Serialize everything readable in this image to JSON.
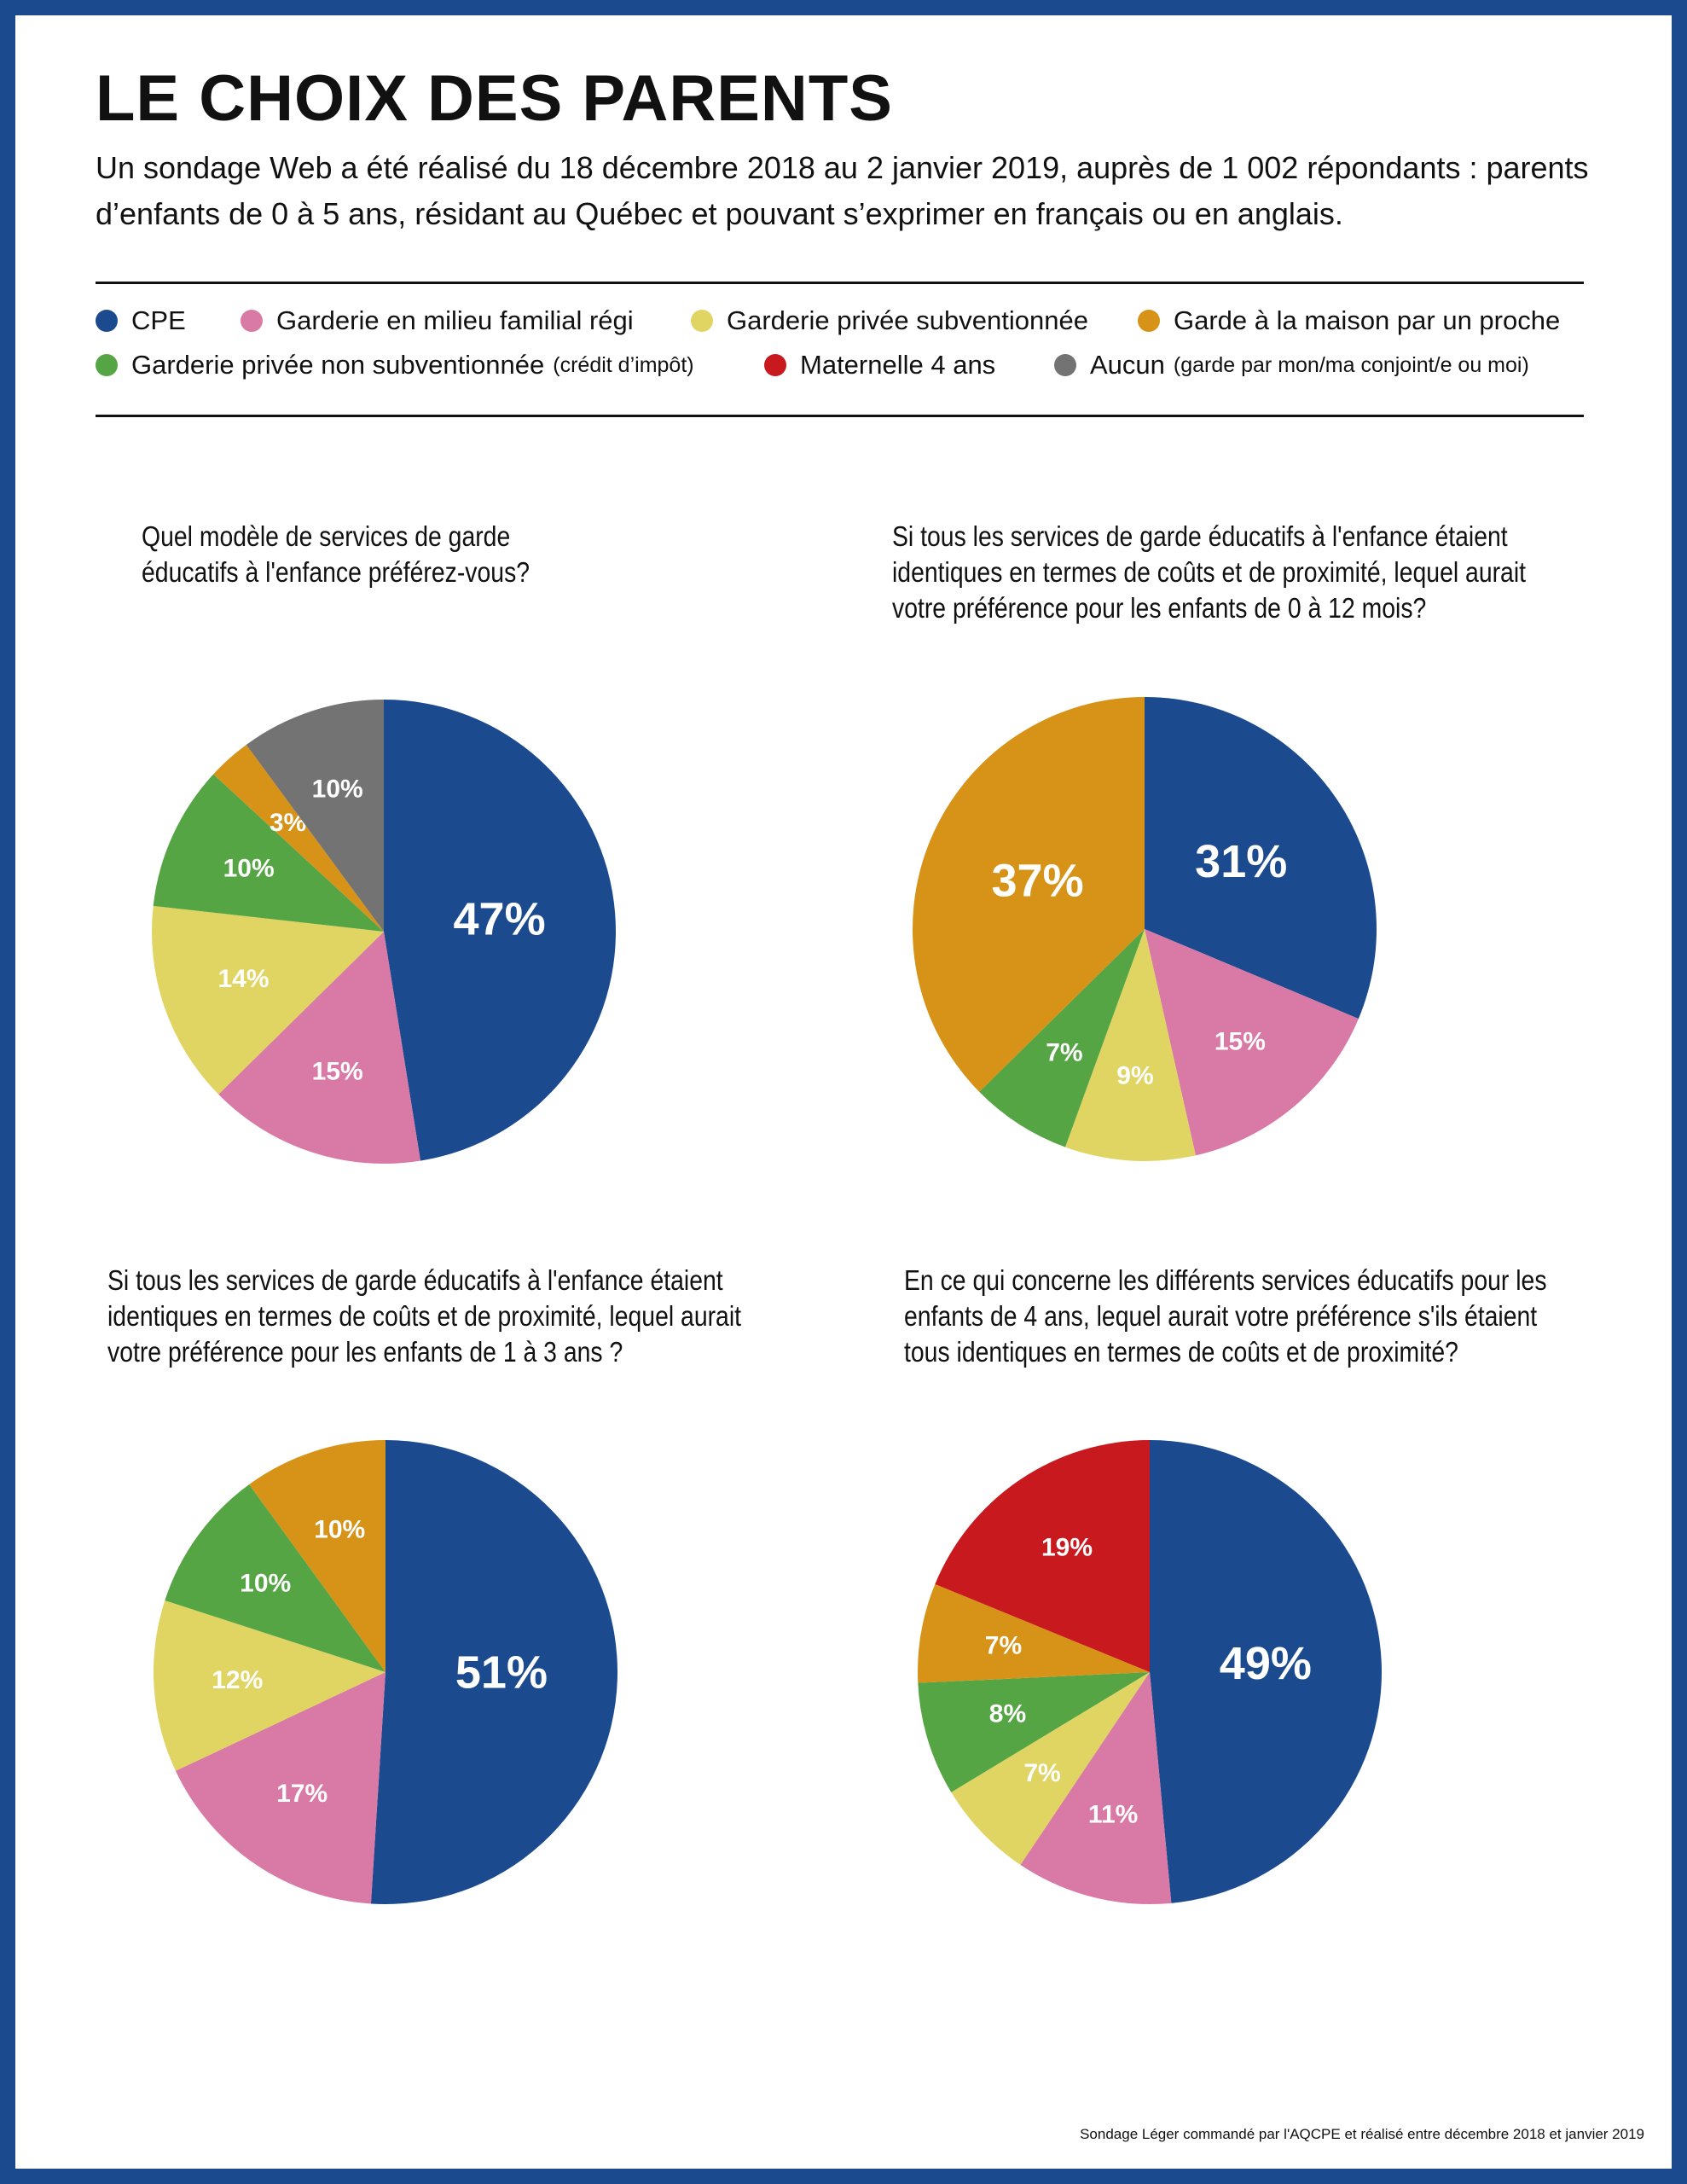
{
  "header": {
    "title": "LE CHOIX DES PARENTS",
    "subtitle": "Un sondage Web a été réalisé du 18 décembre 2018 au 2 janvier 2019, auprès de 1 002 répondants : parents d’enfants de 0 à 5 ans, résidant au Québec et pouvant s’exprimer en français ou en anglais."
  },
  "legend": [
    {
      "key": "cpe",
      "label": "CPE",
      "note": "",
      "color": "#1b4a8f"
    },
    {
      "key": "familial",
      "label": "Garderie en milieu familial régi",
      "note": "",
      "color": "#d97aa6"
    },
    {
      "key": "privee_sub",
      "label": "Garderie privée subventionnée",
      "note": "",
      "color": "#e0d463"
    },
    {
      "key": "proche",
      "label": "Garde à la maison par un proche",
      "note": "",
      "color": "#d69318"
    },
    {
      "key": "privee_nonsub",
      "label": "Garderie privée non subventionnée",
      "note": "(crédit d’impôt)",
      "color": "#55a545"
    },
    {
      "key": "maternelle",
      "label": "Maternelle 4 ans",
      "note": "",
      "color": "#c8191f"
    },
    {
      "key": "aucun",
      "label": "Aucun",
      "note": "(garde par mon/ma conjoint/e ou moi)",
      "color": "#737373"
    }
  ],
  "chart_data": [
    {
      "type": "pie",
      "title": "Quel modèle de services de garde éducatifs à l'enfance préférez-vous?",
      "slices": [
        {
          "key": "cpe",
          "value": 47,
          "label": "47%"
        },
        {
          "key": "familial",
          "value": 15,
          "label": "15%"
        },
        {
          "key": "privee_sub",
          "value": 14,
          "label": "14%"
        },
        {
          "key": "privee_nonsub",
          "value": 10,
          "label": "10%"
        },
        {
          "key": "proche",
          "value": 3,
          "label": "3%"
        },
        {
          "key": "aucun",
          "value": 10,
          "label": "10%"
        }
      ]
    },
    {
      "type": "pie",
      "title": "Si tous les services de garde éducatifs à l'enfance étaient identiques en termes de coûts et de proximité, lequel aurait votre préférence pour les enfants de 0 à 12 mois?",
      "slices": [
        {
          "key": "cpe",
          "value": 31,
          "label": "31%"
        },
        {
          "key": "familial",
          "value": 15,
          "label": "15%"
        },
        {
          "key": "privee_sub",
          "value": 9,
          "label": "9%"
        },
        {
          "key": "privee_nonsub",
          "value": 7,
          "label": "7%"
        },
        {
          "key": "proche",
          "value": 37,
          "label": "37%"
        }
      ]
    },
    {
      "type": "pie",
      "title": "Si tous les services de garde éducatifs à l'enfance étaient identiques en termes de coûts et de proximité, lequel aurait votre préférence pour les enfants de 1 à 3 ans ?",
      "slices": [
        {
          "key": "cpe",
          "value": 51,
          "label": "51%"
        },
        {
          "key": "familial",
          "value": 17,
          "label": "17%"
        },
        {
          "key": "privee_sub",
          "value": 12,
          "label": "12%"
        },
        {
          "key": "privee_nonsub",
          "value": 10,
          "label": "10%"
        },
        {
          "key": "proche",
          "value": 10,
          "label": "10%"
        }
      ]
    },
    {
      "type": "pie",
      "title": "En ce qui concerne les différents services éducatifs pour les enfants de 4 ans, lequel aurait votre préférence s'ils étaient tous identiques en termes de coûts et de proximité?",
      "slices": [
        {
          "key": "cpe",
          "value": 49,
          "label": "49%"
        },
        {
          "key": "familial",
          "value": 11,
          "label": "11%"
        },
        {
          "key": "privee_sub",
          "value": 7,
          "label": "7%"
        },
        {
          "key": "privee_nonsub",
          "value": 8,
          "label": "8%"
        },
        {
          "key": "proche",
          "value": 7,
          "label": "7%"
        },
        {
          "key": "maternelle",
          "value": 19,
          "label": "19%"
        }
      ]
    }
  ],
  "source": "Sondage Léger commandé par l'AQCPE et réalisé entre décembre 2018 et janvier 2019"
}
